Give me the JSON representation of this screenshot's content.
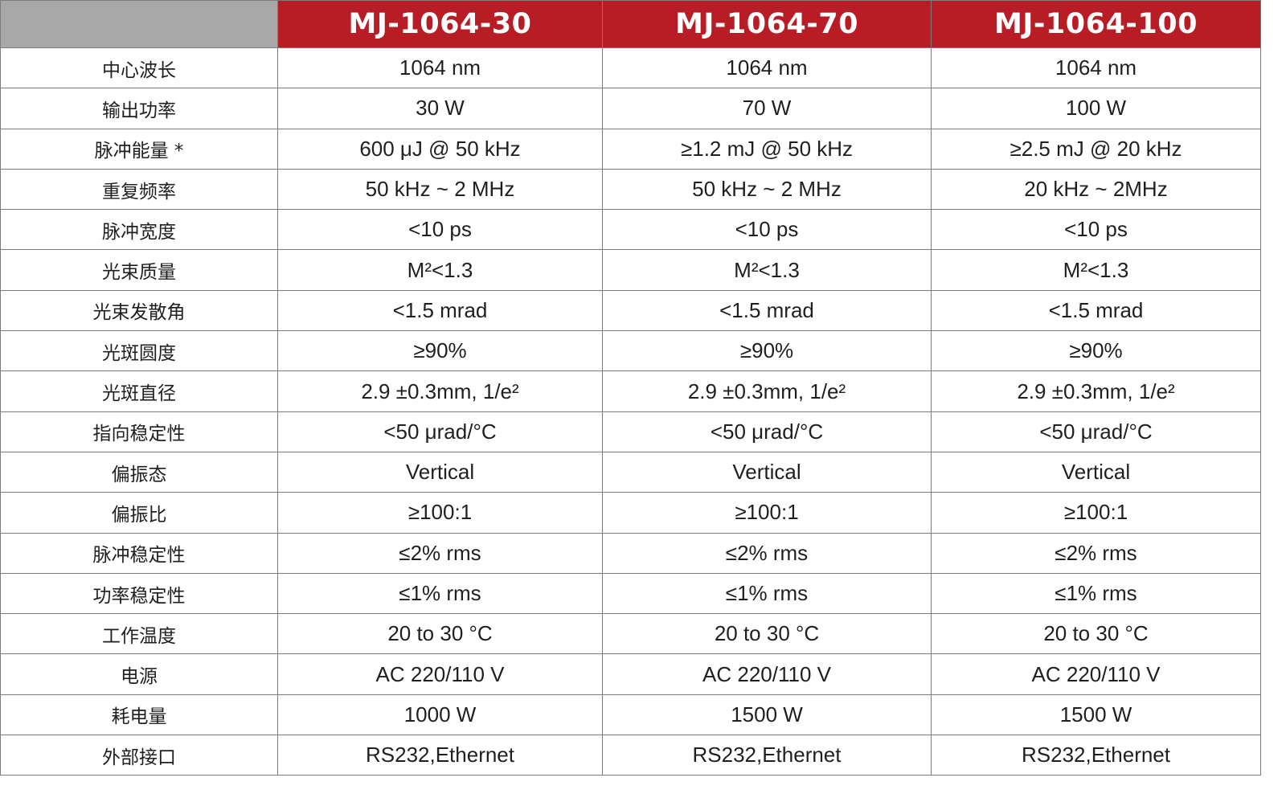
{
  "colors": {
    "header_red": "#b81d25",
    "corner_gray": "#a8a8a8",
    "border_gray": "#7d7d7d",
    "text": "#1f1f1f"
  },
  "models": [
    "MJ-1064-30",
    "MJ-1064-70",
    "MJ-1064-100"
  ],
  "rows": [
    {
      "label": "中心波长",
      "values": [
        "1064 nm",
        "1064 nm",
        "1064 nm"
      ]
    },
    {
      "label": "输出功率",
      "values": [
        "30 W",
        "70 W",
        "100 W"
      ]
    },
    {
      "label": "脉冲能量 *",
      "values": [
        "600 μJ @ 50 kHz",
        "≥1.2 mJ @ 50 kHz",
        "≥2.5 mJ @ 20 kHz"
      ]
    },
    {
      "label": "重复频率",
      "values": [
        "50 kHz ~ 2 MHz",
        "50 kHz ~ 2 MHz",
        "20 kHz ~ 2MHz"
      ]
    },
    {
      "label": "脉冲宽度",
      "values": [
        "<10 ps",
        "<10 ps",
        "<10 ps"
      ]
    },
    {
      "label": "光束质量",
      "values": [
        "M²<1.3",
        "M²<1.3",
        "M²<1.3"
      ]
    },
    {
      "label": "光束发散角",
      "values": [
        "<1.5 mrad",
        "<1.5 mrad",
        "<1.5 mrad"
      ]
    },
    {
      "label": "光斑圆度",
      "values": [
        "≥90%",
        "≥90%",
        "≥90%"
      ]
    },
    {
      "label": "光斑直径",
      "values": [
        "2.9 ±0.3mm, 1/e²",
        "2.9 ±0.3mm, 1/e²",
        "2.9 ±0.3mm, 1/e²"
      ]
    },
    {
      "label": "指向稳定性",
      "values": [
        "<50 μrad/°C",
        "<50 μrad/°C",
        "<50 μrad/°C"
      ]
    },
    {
      "label": "偏振态",
      "values": [
        "Vertical",
        "Vertical",
        "Vertical"
      ]
    },
    {
      "label": "偏振比",
      "values": [
        "≥100:1",
        "≥100:1",
        "≥100:1"
      ]
    },
    {
      "label": "脉冲稳定性",
      "values": [
        "≤2% rms",
        "≤2% rms",
        "≤2% rms"
      ]
    },
    {
      "label": "功率稳定性",
      "values": [
        "≤1% rms",
        "≤1% rms",
        "≤1% rms"
      ]
    },
    {
      "label": "工作温度",
      "values": [
        "20 to 30 °C",
        "20 to 30 °C",
        "20 to 30 °C"
      ]
    },
    {
      "label": "电源",
      "values": [
        "AC 220/110 V",
        "AC 220/110 V",
        "AC 220/110 V"
      ]
    },
    {
      "label": "耗电量",
      "values": [
        "1000 W",
        "1500 W",
        "1500 W"
      ]
    },
    {
      "label": "外部接口",
      "values": [
        "RS232,Ethernet",
        "RS232,Ethernet",
        "RS232,Ethernet"
      ]
    }
  ]
}
